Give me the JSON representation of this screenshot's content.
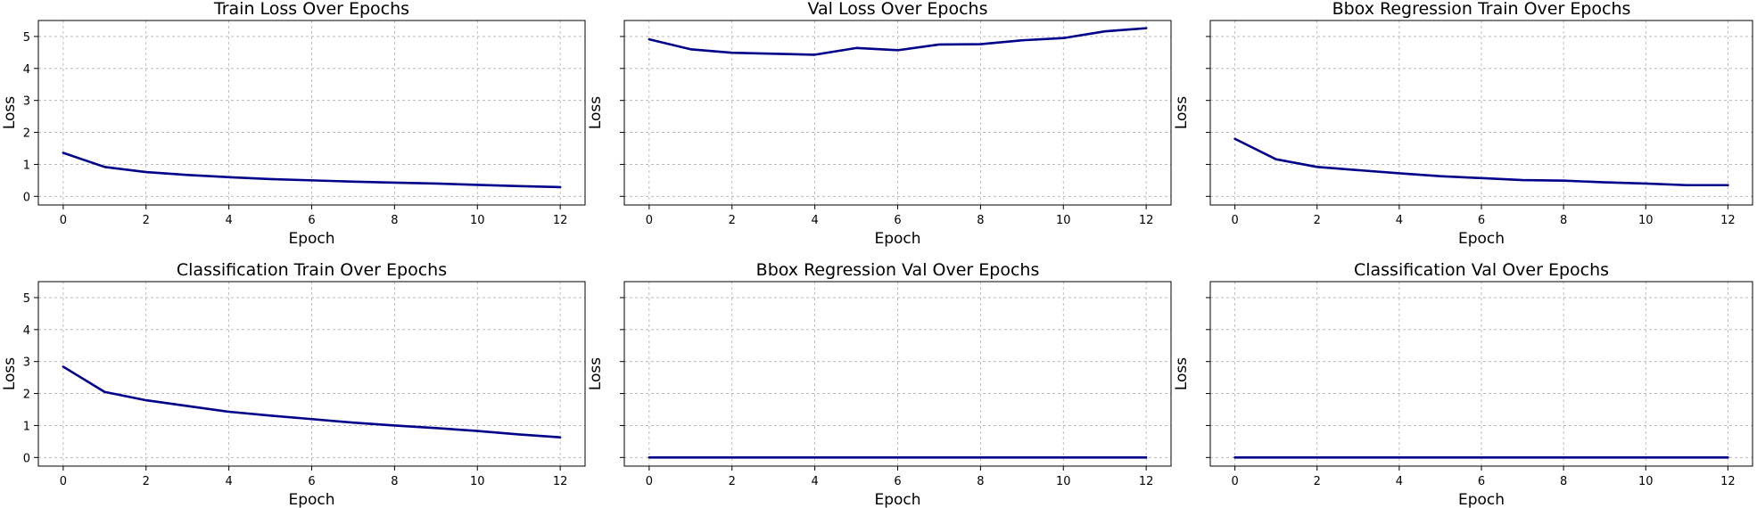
{
  "colors": {
    "line": "#00008b",
    "grid": "#b0b0b0"
  },
  "chart_data": [
    {
      "type": "line",
      "title": "Train Loss Over Epochs",
      "xlabel": "Epoch",
      "ylabel": "Loss",
      "xlim": [
        -0.6,
        12.6
      ],
      "ylim": [
        -0.27,
        5.5
      ],
      "xticks": [
        0,
        2,
        4,
        6,
        8,
        10,
        12
      ],
      "yticks": [
        0,
        1,
        2,
        3,
        4,
        5
      ],
      "show_ytick_labels": true,
      "grid": true,
      "x": [
        0,
        1,
        2,
        3,
        4,
        5,
        6,
        7,
        8,
        9,
        10,
        11,
        12
      ],
      "values": [
        1.36,
        0.92,
        0.76,
        0.67,
        0.6,
        0.54,
        0.5,
        0.46,
        0.43,
        0.4,
        0.36,
        0.32,
        0.29
      ]
    },
    {
      "type": "line",
      "title": "Val Loss Over Epochs",
      "xlabel": "Epoch",
      "ylabel": "Loss",
      "xlim": [
        -0.6,
        12.6
      ],
      "ylim": [
        -0.27,
        5.5
      ],
      "xticks": [
        0,
        2,
        4,
        6,
        8,
        10,
        12
      ],
      "yticks": [
        0,
        1,
        2,
        3,
        4,
        5
      ],
      "show_ytick_labels": false,
      "grid": true,
      "x": [
        0,
        1,
        2,
        3,
        4,
        5,
        6,
        7,
        8,
        9,
        10,
        11,
        12
      ],
      "values": [
        4.91,
        4.6,
        4.49,
        4.46,
        4.43,
        4.64,
        4.57,
        4.75,
        4.76,
        4.88,
        4.95,
        5.16,
        5.26
      ]
    },
    {
      "type": "line",
      "title": "Bbox Regression Train Over Epochs",
      "xlabel": "Epoch",
      "ylabel": "Loss",
      "xlim": [
        -0.6,
        12.6
      ],
      "ylim": [
        -0.27,
        5.5
      ],
      "xticks": [
        0,
        2,
        4,
        6,
        8,
        10,
        12
      ],
      "yticks": [
        0,
        1,
        2,
        3,
        4,
        5
      ],
      "show_ytick_labels": false,
      "grid": true,
      "x": [
        0,
        1,
        2,
        3,
        4,
        5,
        6,
        7,
        8,
        9,
        10,
        11,
        12
      ],
      "values": [
        1.8,
        1.16,
        0.92,
        0.82,
        0.72,
        0.63,
        0.57,
        0.51,
        0.49,
        0.44,
        0.4,
        0.35,
        0.35
      ]
    },
    {
      "type": "line",
      "title": "Classification Train Over Epochs",
      "xlabel": "Epoch",
      "ylabel": "Loss",
      "xlim": [
        -0.6,
        12.6
      ],
      "ylim": [
        -0.27,
        5.5
      ],
      "xticks": [
        0,
        2,
        4,
        6,
        8,
        10,
        12
      ],
      "yticks": [
        0,
        1,
        2,
        3,
        4,
        5
      ],
      "show_ytick_labels": true,
      "grid": true,
      "x": [
        0,
        1,
        2,
        3,
        4,
        5,
        6,
        7,
        8,
        9,
        10,
        11,
        12
      ],
      "values": [
        2.84,
        2.05,
        1.79,
        1.61,
        1.43,
        1.31,
        1.2,
        1.09,
        1.0,
        0.92,
        0.83,
        0.72,
        0.63
      ]
    },
    {
      "type": "line",
      "title": "Bbox Regression Val Over Epochs",
      "xlabel": "Epoch",
      "ylabel": "Loss",
      "xlim": [
        -0.6,
        12.6
      ],
      "ylim": [
        -0.27,
        5.5
      ],
      "xticks": [
        0,
        2,
        4,
        6,
        8,
        10,
        12
      ],
      "yticks": [
        0,
        1,
        2,
        3,
        4,
        5
      ],
      "show_ytick_labels": false,
      "grid": true,
      "x": [
        0,
        1,
        2,
        3,
        4,
        5,
        6,
        7,
        8,
        9,
        10,
        11,
        12
      ],
      "values": [
        0,
        0,
        0,
        0,
        0,
        0,
        0,
        0,
        0,
        0,
        0,
        0,
        0
      ]
    },
    {
      "type": "line",
      "title": "Classification Val Over Epochs",
      "xlabel": "Epoch",
      "ylabel": "Loss",
      "xlim": [
        -0.6,
        12.6
      ],
      "ylim": [
        -0.27,
        5.5
      ],
      "xticks": [
        0,
        2,
        4,
        6,
        8,
        10,
        12
      ],
      "yticks": [
        0,
        1,
        2,
        3,
        4,
        5
      ],
      "show_ytick_labels": false,
      "grid": true,
      "x": [
        0,
        1,
        2,
        3,
        4,
        5,
        6,
        7,
        8,
        9,
        10,
        11,
        12
      ],
      "values": [
        0,
        0,
        0,
        0,
        0,
        0,
        0,
        0,
        0,
        0,
        0,
        0,
        0
      ]
    }
  ]
}
